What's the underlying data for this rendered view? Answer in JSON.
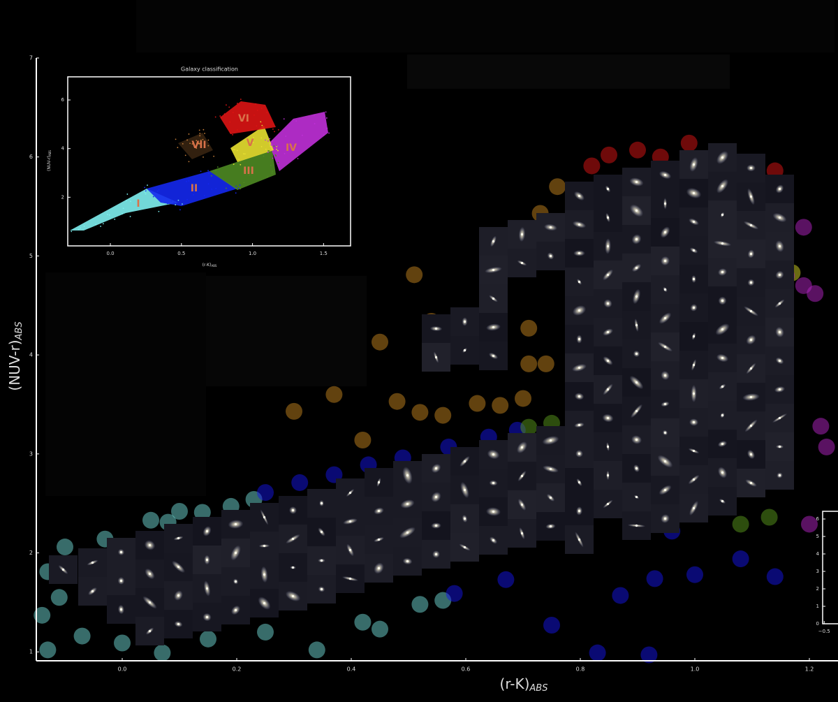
{
  "chart_data": [
    {
      "type": "scatter",
      "xlabel": {
        "text": "(r-K)",
        "sub": "ABS"
      },
      "ylabel": {
        "text": "(NUV-r)",
        "sub": "ABS"
      },
      "xlim": [
        -0.15,
        1.25
      ],
      "ylim": [
        0.91,
        7
      ],
      "xticks": [
        {
          "value": 0,
          "label": "0.0"
        },
        0.2,
        0.4,
        0.6,
        0.8,
        {
          "value": 1,
          "label": "1.0"
        },
        1.2
      ],
      "yticks": [
        1,
        2,
        3,
        4,
        5,
        6,
        7
      ],
      "series": [
        {
          "color": "#6fd8d4",
          "x": [
            -0.1,
            -0.13,
            -0.03,
            0.05,
            0.08,
            0.1,
            0.14,
            0.19,
            0.23,
            -0.13,
            -0.07,
            0,
            0.07,
            0.15,
            0.25,
            0.34,
            0.42,
            0.45,
            0.52,
            0.56,
            -0.14,
            -0.11
          ],
          "y": [
            2.06,
            1.81,
            2.14,
            2.33,
            2.31,
            2.42,
            2.41,
            2.47,
            2.54,
            1.02,
            1.16,
            1.09,
            0.99,
            1.13,
            1.2,
            1.02,
            1.3,
            1.23,
            1.48,
            1.52,
            1.37,
            1.55
          ]
        },
        {
          "color": "#1414e6",
          "x": [
            0.25,
            0.31,
            0.37,
            0.43,
            0.49,
            0.57,
            0.64,
            0.69,
            0.58,
            0.67,
            0.75,
            0.83,
            0.92,
            0.93,
            0.87,
            1,
            1.08,
            1.14,
            0.96
          ],
          "y": [
            2.61,
            2.71,
            2.79,
            2.89,
            2.96,
            3.07,
            3.17,
            3.24,
            1.59,
            1.73,
            1.27,
            0.99,
            0.97,
            1.74,
            1.57,
            1.78,
            1.94,
            1.76,
            2.22
          ]
        },
        {
          "color": "#5a9a1c",
          "x": [
            0.71,
            0.75,
            1.08,
            1.13,
            1.06
          ],
          "y": [
            3.27,
            3.31,
            2.29,
            2.36,
            2.64
          ]
        },
        {
          "color": "#c4841e",
          "x": [
            0.51,
            0.45,
            0.3,
            0.37,
            0.42,
            0.48,
            0.52,
            0.56,
            0.62,
            0.66,
            0.7,
            0.71,
            0.76,
            0.73,
            0.74,
            0.71,
            0.54
          ],
          "y": [
            4.81,
            4.13,
            3.43,
            3.6,
            3.14,
            3.53,
            3.42,
            3.39,
            3.51,
            3.49,
            3.56,
            3.91,
            5.7,
            5.43,
            3.91,
            4.27,
            4.34
          ]
        },
        {
          "color": "#dd1414",
          "x": [
            0.82,
            0.85,
            0.9,
            0.99,
            1.14,
            0.94
          ],
          "y": [
            5.91,
            6.02,
            6.07,
            6.14,
            5.86,
            6
          ]
        },
        {
          "color": "#d6d626",
          "x": [
            1.14,
            1.14,
            1.14,
            1.17
          ],
          "y": [
            4.97,
            4.62,
            4.41,
            4.83
          ]
        },
        {
          "color": "#b424c4",
          "x": [
            1.19,
            1.16,
            1.19,
            1.21,
            1.23,
            1.2,
            1.22
          ],
          "y": [
            5.29,
            4.8,
            4.7,
            4.62,
            3.07,
            2.29,
            3.28
          ]
        }
      ]
    },
    {
      "type": "classes",
      "title": "Galaxy classification",
      "xlabel": {
        "text": "(r-K)",
        "sub": "ABS"
      },
      "ylabel": {
        "text": "(NUV-r)",
        "sub": "ABS"
      },
      "xlim": [
        -0.3,
        1.69
      ],
      "ylim": [
        0,
        6.95
      ],
      "xticks": [
        {
          "value": 0,
          "label": "0.0"
        },
        0.5,
        {
          "value": 1,
          "label": "1.0"
        },
        1.5
      ],
      "yticks": [
        2,
        4,
        6
      ],
      "classes": [
        {
          "label": "I",
          "color": "#7ef0f0"
        },
        {
          "label": "II",
          "color": "#1428ee"
        },
        {
          "label": "III",
          "color": "#4e8a22"
        },
        {
          "label": "IV",
          "color": "#c030d8"
        },
        {
          "label": "V",
          "color": "#e8e030"
        },
        {
          "label": "VI",
          "color": "#dd1414"
        },
        {
          "label": "VII",
          "color": "#c8803a"
        }
      ]
    },
    {
      "type": "frame",
      "xlim": [
        -0.52,
        1.7
      ],
      "ylim": [
        0,
        6.44
      ],
      "xticks": [
        {
          "value": -0.5,
          "label": "−0.5"
        }
      ],
      "yticks": [
        0,
        1,
        2,
        3,
        4,
        5,
        6
      ]
    }
  ]
}
